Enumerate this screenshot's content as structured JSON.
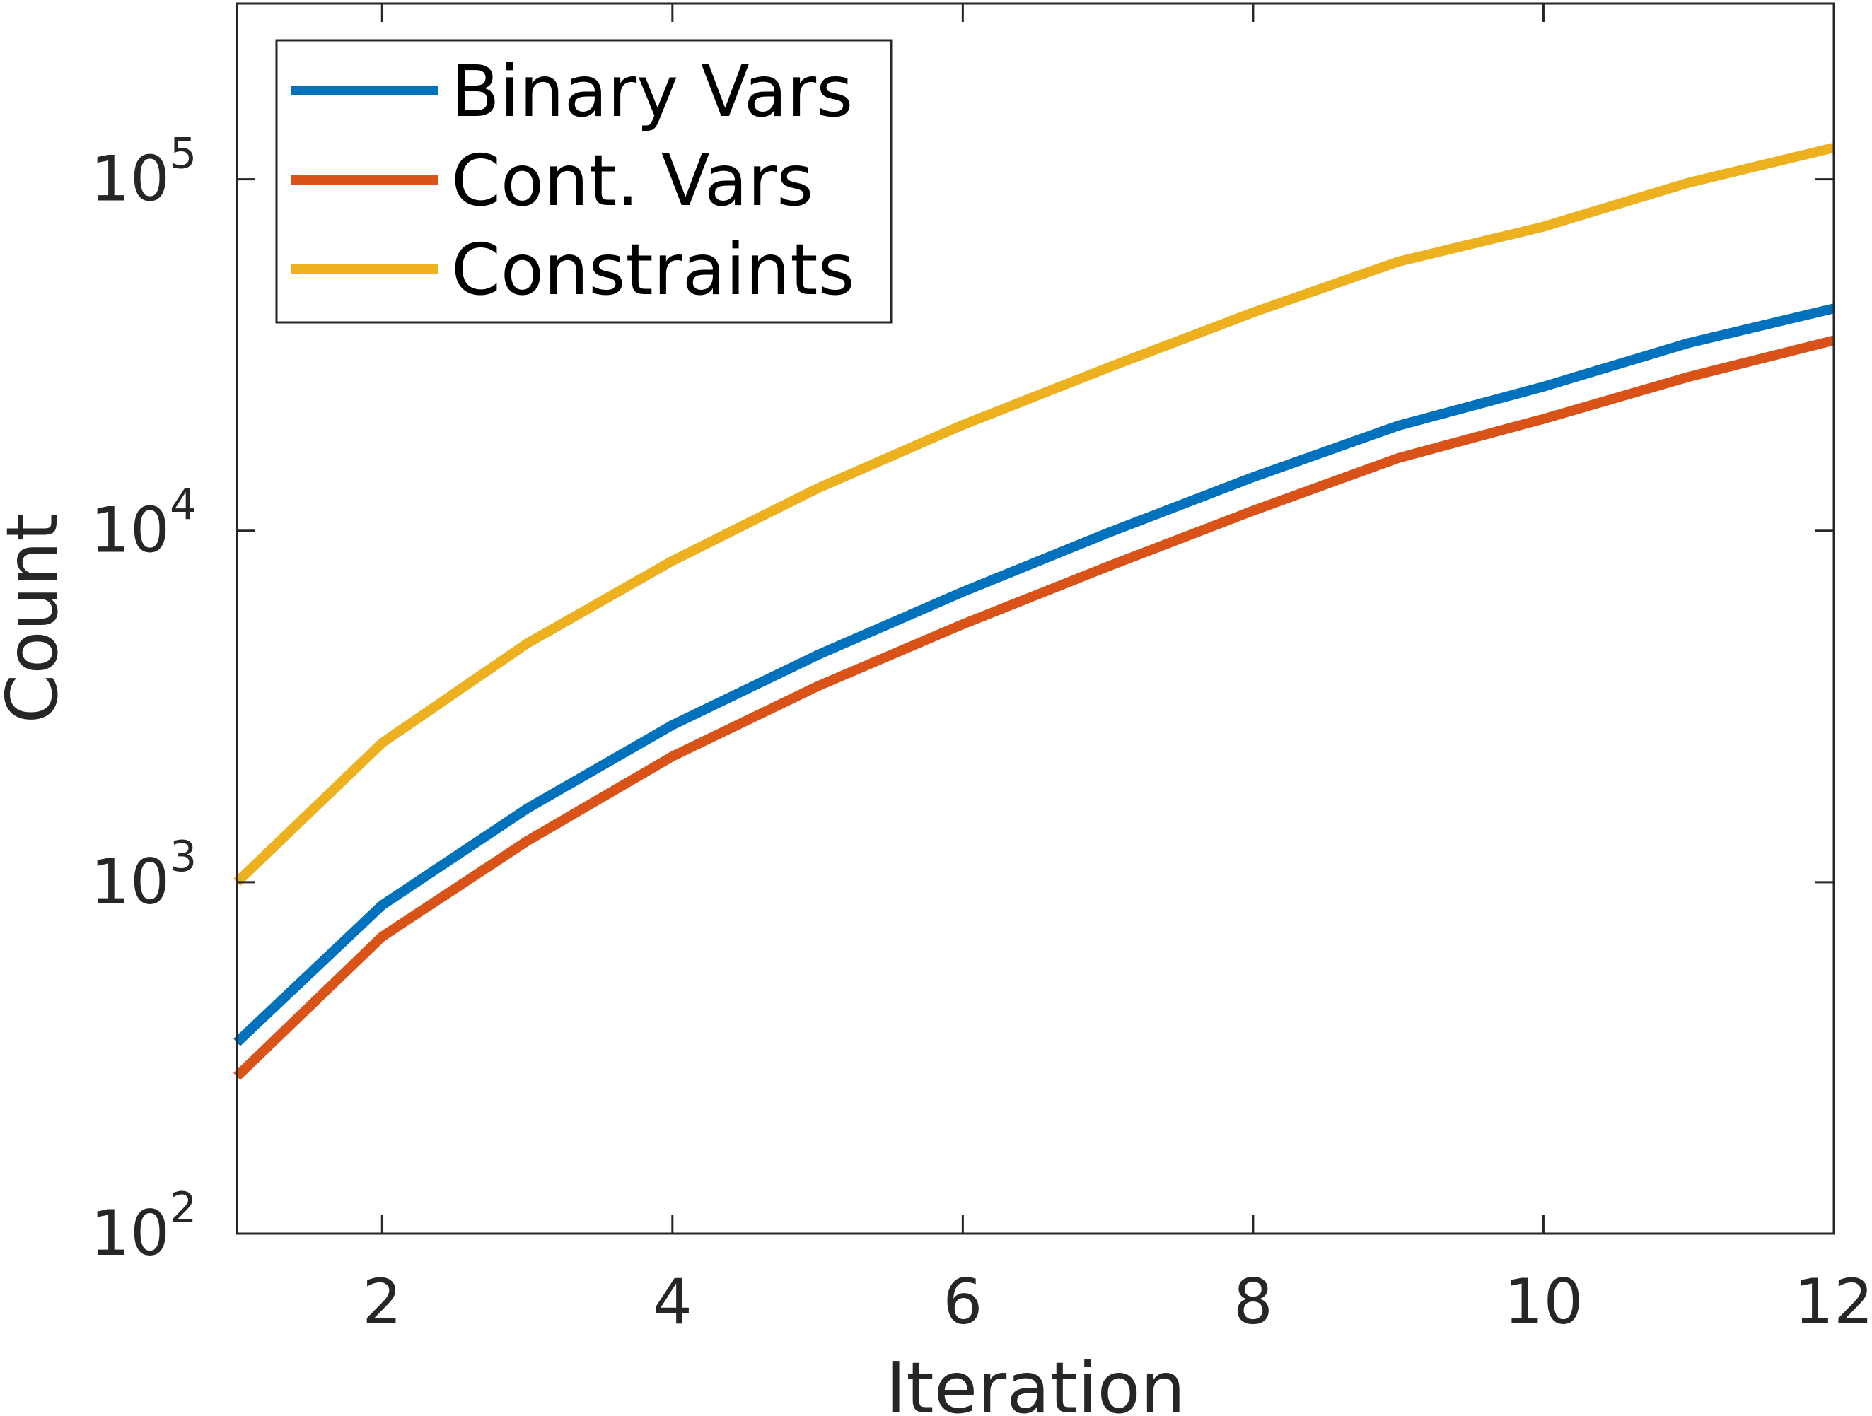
{
  "chart_data": {
    "type": "line",
    "title": "",
    "xlabel": "Iteration",
    "ylabel": "Count",
    "x": [
      1,
      2,
      3,
      4,
      5,
      6,
      7,
      8,
      9,
      10,
      11,
      12
    ],
    "xlim": [
      1,
      12
    ],
    "ylim": [
      100,
      316228
    ],
    "yscale": "log",
    "grid": false,
    "legend_position": "top-left",
    "x_ticks": [
      {
        "value": 2,
        "label": "2"
      },
      {
        "value": 4,
        "label": "4"
      },
      {
        "value": 6,
        "label": "6"
      },
      {
        "value": 8,
        "label": "8"
      },
      {
        "value": 10,
        "label": "10"
      },
      {
        "value": 12,
        "label": "12"
      }
    ],
    "y_ticks": [
      {
        "value": 100,
        "base": "10",
        "exp": "2"
      },
      {
        "value": 1000,
        "base": "10",
        "exp": "3"
      },
      {
        "value": 10000,
        "base": "10",
        "exp": "4"
      },
      {
        "value": 100000,
        "base": "10",
        "exp": "5"
      }
    ],
    "series": [
      {
        "name": "Binary Vars",
        "color": "#0072BD",
        "values": [
          350,
          860,
          1620,
          2800,
          4430,
          6700,
          9860,
          14200,
          19900,
          25700,
          34200,
          42900
        ]
      },
      {
        "name": "Cont. Vars",
        "color": "#D95319",
        "values": [
          280,
          700,
          1310,
          2280,
          3610,
          5420,
          7910,
          11400,
          16100,
          20800,
          27400,
          34800
        ]
      },
      {
        "name": "Constraints",
        "color": "#EDB120",
        "values": [
          1000,
          2490,
          4780,
          8210,
          13200,
          20000,
          29100,
          41800,
          58300,
          73300,
          97800,
          123000
        ]
      }
    ]
  }
}
